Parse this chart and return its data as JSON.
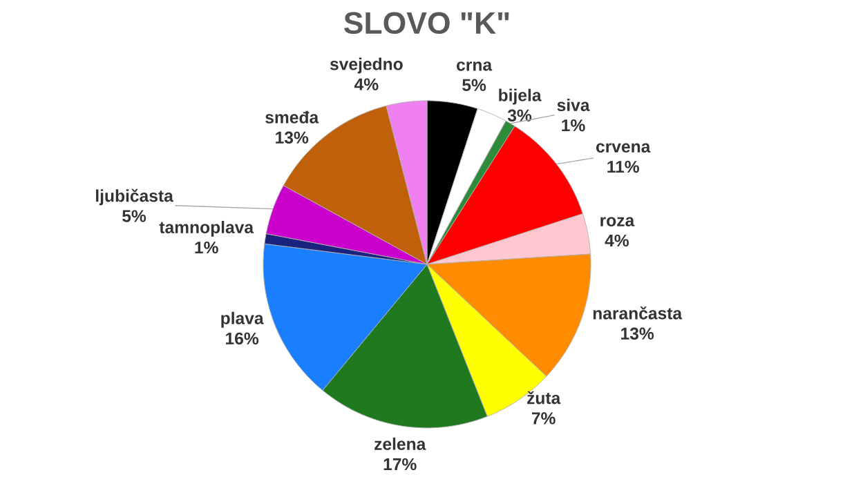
{
  "chart_data": {
    "type": "pie",
    "title": "SLOVO \"K\"",
    "categories": [
      "crna",
      "bijela",
      "siva",
      "crvena",
      "roza",
      "narančasta",
      "žuta",
      "zelena",
      "plava",
      "tamnoplava",
      "ljubičasta",
      "smeđa",
      "svejedno"
    ],
    "values": [
      5,
      3,
      1,
      11,
      4,
      13,
      7,
      17,
      16,
      1,
      5,
      13,
      4
    ],
    "value_labels": [
      "5%",
      "3%",
      "1%",
      "11%",
      "4%",
      "13%",
      "7%",
      "17%",
      "16%",
      "1%",
      "5%",
      "13%",
      "4%"
    ],
    "colors": [
      "#000000",
      "#ffffff",
      "#2e8b3a",
      "#ff0000",
      "#ffc7ce",
      "#ff8c00",
      "#ffff00",
      "#1f7a1f",
      "#1a7fff",
      "#1a237e",
      "#cc00cc",
      "#c0600a",
      "#f080f0"
    ]
  }
}
